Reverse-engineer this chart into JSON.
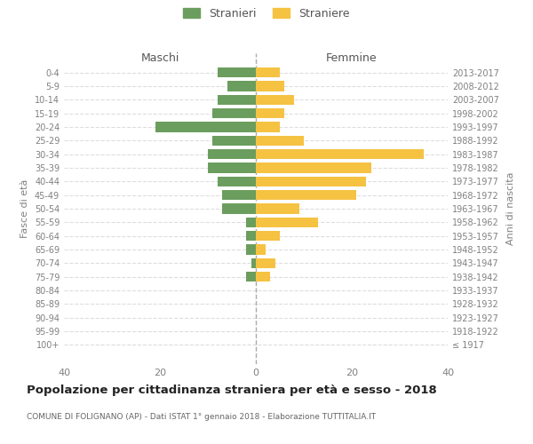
{
  "age_groups": [
    "100+",
    "95-99",
    "90-94",
    "85-89",
    "80-84",
    "75-79",
    "70-74",
    "65-69",
    "60-64",
    "55-59",
    "50-54",
    "45-49",
    "40-44",
    "35-39",
    "30-34",
    "25-29",
    "20-24",
    "15-19",
    "10-14",
    "5-9",
    "0-4"
  ],
  "birth_years": [
    "≤ 1917",
    "1918-1922",
    "1923-1927",
    "1928-1932",
    "1933-1937",
    "1938-1942",
    "1943-1947",
    "1948-1952",
    "1953-1957",
    "1958-1962",
    "1963-1967",
    "1968-1972",
    "1973-1977",
    "1978-1982",
    "1983-1987",
    "1988-1992",
    "1993-1997",
    "1998-2002",
    "2003-2007",
    "2008-2012",
    "2013-2017"
  ],
  "maschi": [
    0,
    0,
    0,
    0,
    0,
    2,
    1,
    2,
    2,
    2,
    7,
    7,
    8,
    10,
    10,
    9,
    21,
    9,
    8,
    6,
    8
  ],
  "femmine": [
    0,
    0,
    0,
    0,
    0,
    3,
    4,
    2,
    5,
    13,
    9,
    21,
    23,
    24,
    35,
    10,
    5,
    6,
    8,
    6,
    5
  ],
  "male_color": "#6b9e5e",
  "female_color": "#f5c242",
  "bar_height": 0.75,
  "xlim": 40,
  "title": "Popolazione per cittadinanza straniera per età e sesso - 2018",
  "subtitle": "COMUNE DI FOLIGNANO (AP) - Dati ISTAT 1° gennaio 2018 - Elaborazione TUTTITALIA.IT",
  "ylabel_left": "Fasce di età",
  "ylabel_right": "Anni di nascita",
  "legend_maschi": "Stranieri",
  "legend_femmine": "Straniere",
  "header_maschi": "Maschi",
  "header_femmine": "Femmine",
  "bg_color": "#ffffff",
  "grid_color": "#dddddd",
  "text_color": "#808080"
}
